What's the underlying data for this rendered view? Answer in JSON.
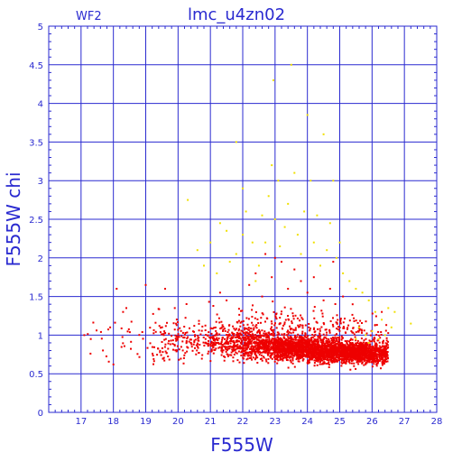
{
  "chart_data": {
    "type": "scatter",
    "title": "lmc_u4zn02",
    "corner_label": "WF2",
    "xlabel": "F555W",
    "ylabel": "F555W chi",
    "xlim": [
      16,
      28
    ],
    "ylim": [
      0,
      5
    ],
    "x_ticks": [
      "17",
      "18",
      "19",
      "20",
      "21",
      "22",
      "23",
      "24",
      "25",
      "26",
      "27",
      "28"
    ],
    "y_ticks": [
      "0",
      "0.5",
      "1",
      "1.5",
      "2",
      "2.5",
      "3",
      "3.5",
      "4",
      "4.5",
      "5"
    ],
    "grid": true,
    "colors": {
      "axis": "#2a2ad0",
      "grid": "#2a2ad0",
      "primary": "#ee0000",
      "secondary": "#f0e000"
    },
    "series": [
      {
        "color": "#ee0000",
        "clusters": [
          {
            "x_range": [
              17.0,
              19.2
            ],
            "y_center": 0.92,
            "y_spread": 0.22,
            "count": 30,
            "min_y": 0.6
          },
          {
            "x_range": [
              19.2,
              21.0
            ],
            "y_center": 0.92,
            "y_spread": 0.22,
            "count": 180,
            "min_y": 0.6
          },
          {
            "x_range": [
              21.0,
              22.0
            ],
            "y_center": 0.9,
            "y_spread": 0.2,
            "count": 260,
            "min_y": 0.55
          },
          {
            "x_range": [
              22.0,
              23.0
            ],
            "y_center": 0.88,
            "y_spread": 0.17,
            "count": 520,
            "min_y": 0.5
          },
          {
            "x_range": [
              23.0,
              24.0
            ],
            "y_center": 0.84,
            "y_spread": 0.15,
            "count": 800,
            "min_y": 0.5
          },
          {
            "x_range": [
              24.0,
              25.0
            ],
            "y_center": 0.8,
            "y_spread": 0.14,
            "count": 900,
            "min_y": 0.45
          },
          {
            "x_range": [
              25.0,
              25.8
            ],
            "y_center": 0.78,
            "y_spread": 0.13,
            "count": 650,
            "min_y": 0.45
          },
          {
            "x_range": [
              25.8,
              26.5
            ],
            "y_center": 0.77,
            "y_spread": 0.13,
            "count": 420,
            "min_y": 0.5
          }
        ],
        "points": [
          [
            17.1,
            1.0
          ],
          [
            17.3,
            0.95
          ],
          [
            17.9,
            1.1
          ],
          [
            18.0,
            0.62
          ],
          [
            18.1,
            1.6
          ],
          [
            18.3,
            1.3
          ],
          [
            18.4,
            1.35
          ],
          [
            19.0,
            1.65
          ],
          [
            19.6,
            1.6
          ],
          [
            19.9,
            1.35
          ],
          [
            21.3,
            1.55
          ],
          [
            21.5,
            1.45
          ],
          [
            22.2,
            1.65
          ],
          [
            22.4,
            1.8
          ],
          [
            22.6,
            1.5
          ],
          [
            22.9,
            1.75
          ],
          [
            23.2,
            1.95
          ],
          [
            23.4,
            1.6
          ],
          [
            23.6,
            1.85
          ],
          [
            23.8,
            1.7
          ],
          [
            24.0,
            1.55
          ],
          [
            24.2,
            1.75
          ],
          [
            24.5,
            1.45
          ],
          [
            24.7,
            1.6
          ],
          [
            25.1,
            1.5
          ],
          [
            25.4,
            1.4
          ],
          [
            26.3,
            1.3
          ],
          [
            23.0,
            2.0
          ],
          [
            22.7,
            2.05
          ],
          [
            24.8,
            1.95
          ]
        ]
      },
      {
        "color": "#f0e000",
        "points": [
          [
            20.3,
            2.75
          ],
          [
            20.6,
            2.1
          ],
          [
            20.8,
            1.9
          ],
          [
            21.0,
            2.2
          ],
          [
            21.2,
            1.8
          ],
          [
            21.3,
            2.45
          ],
          [
            21.5,
            2.35
          ],
          [
            21.6,
            1.95
          ],
          [
            21.8,
            2.05
          ],
          [
            21.8,
            3.5
          ],
          [
            22.0,
            2.9
          ],
          [
            22.0,
            2.3
          ],
          [
            22.1,
            2.6
          ],
          [
            22.3,
            2.2
          ],
          [
            22.5,
            1.9
          ],
          [
            22.6,
            2.55
          ],
          [
            22.7,
            2.2
          ],
          [
            22.8,
            2.8
          ],
          [
            22.9,
            3.2
          ],
          [
            22.95,
            4.3
          ],
          [
            23.0,
            2.5
          ],
          [
            23.1,
            3.0
          ],
          [
            23.15,
            2.15
          ],
          [
            23.3,
            2.4
          ],
          [
            23.4,
            2.7
          ],
          [
            23.5,
            4.5
          ],
          [
            23.6,
            3.1
          ],
          [
            23.7,
            2.3
          ],
          [
            23.8,
            2.05
          ],
          [
            23.9,
            2.6
          ],
          [
            24.0,
            3.85
          ],
          [
            24.1,
            3.0
          ],
          [
            24.2,
            2.2
          ],
          [
            24.3,
            2.55
          ],
          [
            24.5,
            3.6
          ],
          [
            24.6,
            2.1
          ],
          [
            24.7,
            2.45
          ],
          [
            24.8,
            3.0
          ],
          [
            24.9,
            2.0
          ],
          [
            25.0,
            2.2
          ],
          [
            25.1,
            1.8
          ],
          [
            25.3,
            1.7
          ],
          [
            25.5,
            1.6
          ],
          [
            25.7,
            1.55
          ],
          [
            25.9,
            1.45
          ],
          [
            26.1,
            1.3
          ],
          [
            26.3,
            1.2
          ],
          [
            26.5,
            1.35
          ],
          [
            26.7,
            1.3
          ],
          [
            27.2,
            1.15
          ],
          [
            25.6,
            1.1
          ],
          [
            25.8,
            1.0
          ],
          [
            26.0,
            1.05
          ],
          [
            26.2,
            0.95
          ],
          [
            26.4,
            1.0
          ],
          [
            25.5,
            0.95
          ],
          [
            25.9,
            0.9
          ],
          [
            26.6,
            1.1
          ],
          [
            24.4,
            1.9
          ],
          [
            22.4,
            1.7
          ]
        ]
      }
    ]
  }
}
